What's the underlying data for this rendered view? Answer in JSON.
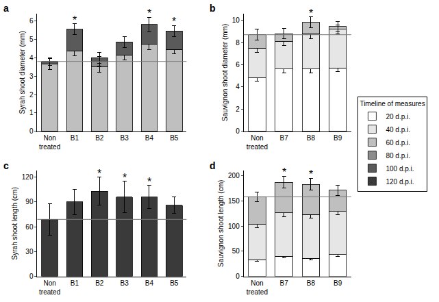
{
  "legend_title": "Timeline of measures",
  "legend_entries": [
    "20 d.p.i.",
    "40 d.p.i.",
    "60 d.p.i.",
    "80 d.p.i.",
    "100 d.p.i.",
    "120 d.p.i."
  ],
  "chart_data": [
    {
      "type": "bar",
      "label": "a",
      "stacked": true,
      "ylabel": "Syrah shoot diameter (mm)",
      "categories": [
        "Non treated",
        "B1",
        "B2",
        "B3",
        "B4",
        "B5"
      ],
      "ylim": [
        0,
        6.4
      ],
      "yticks": [
        0,
        1,
        2,
        3,
        4,
        5,
        6
      ],
      "reference_line": 3.8,
      "series": [
        {
          "name": "60 d.p.i.",
          "color": "#bfbfbf",
          "values": [
            3.65,
            4.35,
            3.5,
            4.15,
            4.75,
            4.45
          ],
          "errors": [
            0.3,
            0.25,
            0.3,
            0.25,
            0.3,
            0.25
          ]
        },
        {
          "name": "80 d.p.i.",
          "color": "#8c8c8c",
          "values": [
            0,
            0,
            0.3,
            0,
            0,
            0
          ],
          "errors": [
            null,
            null,
            0.25,
            null,
            null,
            null
          ]
        },
        {
          "name": "100 d.p.i.",
          "color": "#5a5a5a",
          "values": [
            0.15,
            1.2,
            0.2,
            0.7,
            1.05,
            1.0
          ],
          "errors": [
            0.2,
            0.3,
            0.3,
            0.3,
            0.4,
            0.3
          ]
        }
      ],
      "annotations": [
        {
          "category": "B1",
          "text": "*"
        },
        {
          "category": "B4",
          "text": "*"
        },
        {
          "category": "B5",
          "text": "*"
        }
      ]
    },
    {
      "type": "bar",
      "label": "b",
      "stacked": true,
      "ylabel": "Sauvignon shoot diameter (mm)",
      "categories": [
        "Non treated",
        "B7",
        "B8",
        "B9"
      ],
      "ylim": [
        0,
        10.6
      ],
      "yticks": [
        0,
        2,
        4,
        6,
        8,
        10
      ],
      "reference_line": 8.7,
      "series": [
        {
          "name": "20 d.p.i.",
          "color": "#ffffff",
          "values": [
            4.8,
            5.6,
            5.6,
            5.7
          ],
          "errors": [
            0.3,
            0.35,
            0.35,
            0.3
          ]
        },
        {
          "name": "40 d.p.i.",
          "color": "#e6e6e6",
          "values": [
            2.7,
            2.5,
            3.2,
            3.5
          ],
          "errors": [
            0.4,
            0.4,
            0.45,
            0.4
          ]
        },
        {
          "name": "60 d.p.i.",
          "color": "#bfbfbf",
          "values": [
            1.2,
            0.7,
            1.0,
            0.25
          ],
          "errors": [
            0.5,
            0.45,
            0.5,
            0.45
          ]
        }
      ],
      "annotations": [
        {
          "category": "B8",
          "text": "*"
        }
      ]
    },
    {
      "type": "bar",
      "label": "c",
      "stacked": true,
      "ylabel": "Syrah shoot length (cm)",
      "categories": [
        "Non treated",
        "B1",
        "B2",
        "B3",
        "B4",
        "B5"
      ],
      "ylim": [
        0,
        128
      ],
      "yticks": [
        0,
        30,
        60,
        90,
        120
      ],
      "reference_line": 69,
      "series": [
        {
          "name": "120 d.p.i.",
          "color": "#3a3a3a",
          "values": [
            69,
            90,
            103,
            96,
            96,
            86
          ],
          "errors": [
            19,
            15,
            17,
            19,
            14,
            10
          ]
        }
      ],
      "annotations": [
        {
          "category": "B2",
          "text": "*"
        },
        {
          "category": "B3",
          "text": "*"
        },
        {
          "category": "B4",
          "text": "*"
        }
      ]
    },
    {
      "type": "bar",
      "label": "d",
      "stacked": true,
      "ylabel": "Sauvignon shoot length (cm)",
      "categories": [
        "Non treated",
        "B7",
        "B8",
        "B9"
      ],
      "ylim": [
        0,
        210
      ],
      "yticks": [
        0,
        50,
        100,
        150,
        200
      ],
      "reference_line": 158,
      "series": [
        {
          "name": "20 d.p.i.",
          "color": "#ffffff",
          "values": [
            33,
            40,
            36,
            43
          ],
          "errors": [
            3,
            3,
            3,
            3
          ]
        },
        {
          "name": "40 d.p.i.",
          "color": "#e6e6e6",
          "values": [
            70,
            86,
            87,
            86
          ],
          "errors": [
            7,
            7,
            7,
            6
          ]
        },
        {
          "name": "60 d.p.i.",
          "color": "#bfbfbf",
          "values": [
            55,
            61,
            60,
            42
          ],
          "errors": [
            10,
            12,
            12,
            10
          ]
        }
      ],
      "annotations": [
        {
          "category": "B7",
          "text": "*"
        },
        {
          "category": "B8",
          "text": "*"
        }
      ]
    }
  ]
}
